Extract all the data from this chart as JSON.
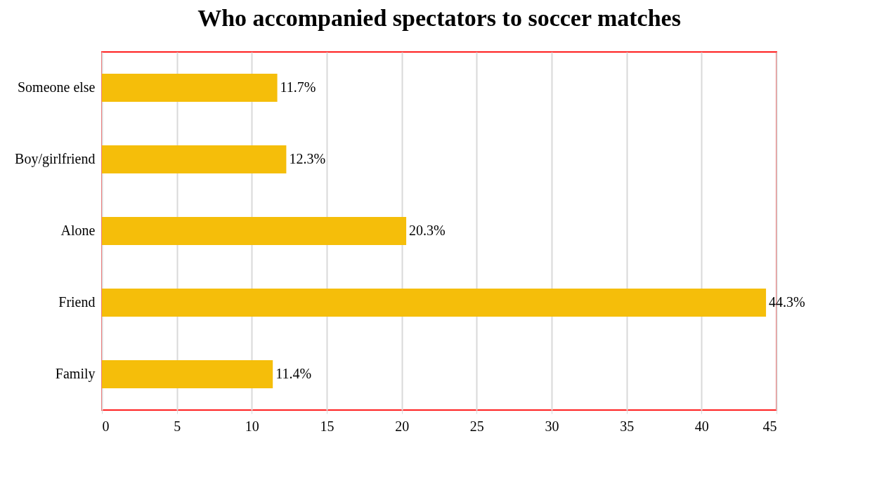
{
  "chart_data": {
    "type": "bar",
    "orientation": "horizontal",
    "title": "Who accompanied spectators to soccer matches",
    "categories": [
      "Someone else",
      "Boy/girlfriend",
      "Alone",
      "Friend",
      "Family"
    ],
    "values": [
      11.7,
      12.3,
      20.3,
      44.3,
      11.4
    ],
    "value_labels": [
      "11.7%",
      "12.3%",
      "20.3%",
      "44.3%",
      "11.4%"
    ],
    "color": "#f5be0a",
    "xlim": [
      0,
      45
    ],
    "xticks": [
      0,
      5,
      10,
      15,
      20,
      25,
      30,
      35,
      40,
      45
    ],
    "grid": "x"
  }
}
